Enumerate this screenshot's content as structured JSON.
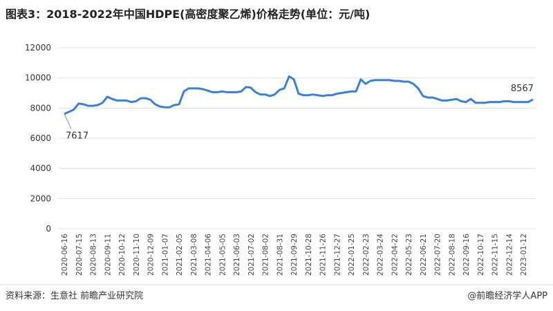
{
  "chart_data": {
    "type": "line",
    "title": "图表3：2018-2022年中国HDPE(高密度聚乙烯)价格走势(单位：元/吨)",
    "source": "资料来源：生意社 前瞻产业研究院",
    "credit": "@前瞻经济学人APP",
    "categories": [
      "2020-06-16",
      null,
      null,
      "2020-07-15",
      null,
      null,
      "2020-08-13",
      null,
      null,
      "2020-09-11",
      null,
      null,
      "2020-10-12",
      null,
      null,
      "2020-11-10",
      null,
      null,
      "2020-12-09",
      null,
      null,
      "2021-01-07",
      null,
      null,
      "2021-02-05",
      null,
      null,
      "2021-03-08",
      null,
      null,
      "2021-04-06",
      null,
      null,
      "2021-05-05",
      null,
      null,
      "2021-06-03",
      null,
      null,
      "2021-07-02",
      null,
      null,
      "2021-08-02",
      null,
      null,
      "2021-08-31",
      null,
      null,
      "2021-09-29",
      null,
      null,
      "2021-10-28",
      null,
      null,
      "2021-11-26",
      null,
      null,
      "2021-12-27",
      null,
      null,
      "2022-01-25",
      null,
      null,
      "2022-02-23",
      null,
      null,
      "2022-03-24",
      null,
      null,
      "2022-04-22",
      null,
      null,
      "2022-05-23",
      null,
      null,
      "2022-06-21",
      null,
      null,
      "2022-07-20",
      null,
      null,
      "2022-08-18",
      null,
      null,
      "2022-09-16",
      null,
      null,
      "2022-10-17",
      null,
      null,
      "2022-11-15",
      null,
      null,
      "2022-12-14",
      null,
      null,
      "2023-01-12",
      null,
      null
    ],
    "series": [
      {
        "name": "HDPE价格",
        "color": "#3a80d6",
        "values": [
          7617,
          7750,
          7900,
          8300,
          8250,
          8150,
          8150,
          8200,
          8350,
          8750,
          8600,
          8500,
          8500,
          8500,
          8400,
          8450,
          8650,
          8650,
          8550,
          8250,
          8100,
          8050,
          8050,
          8200,
          8250,
          9100,
          9300,
          9300,
          9300,
          9250,
          9150,
          9050,
          9050,
          9100,
          9050,
          9050,
          9050,
          9100,
          9400,
          9350,
          9050,
          8900,
          8900,
          8800,
          8900,
          9200,
          9300,
          10100,
          9900,
          8950,
          8850,
          8850,
          8900,
          8850,
          8800,
          8850,
          8850,
          8950,
          9000,
          9050,
          9100,
          9100,
          9900,
          9600,
          9800,
          9850,
          9850,
          9850,
          9850,
          9800,
          9800,
          9750,
          9750,
          9600,
          9300,
          8800,
          8700,
          8700,
          8600,
          8500,
          8500,
          8550,
          8600,
          8450,
          8400,
          8600,
          8350,
          8350,
          8350,
          8400,
          8400,
          8400,
          8450,
          8450,
          8400,
          8400,
          8400,
          8400,
          8567
        ]
      }
    ],
    "ylim": [
      0,
      12000
    ],
    "yticks": [
      0,
      2000,
      4000,
      6000,
      8000,
      10000,
      12000
    ],
    "grid": true
  }
}
